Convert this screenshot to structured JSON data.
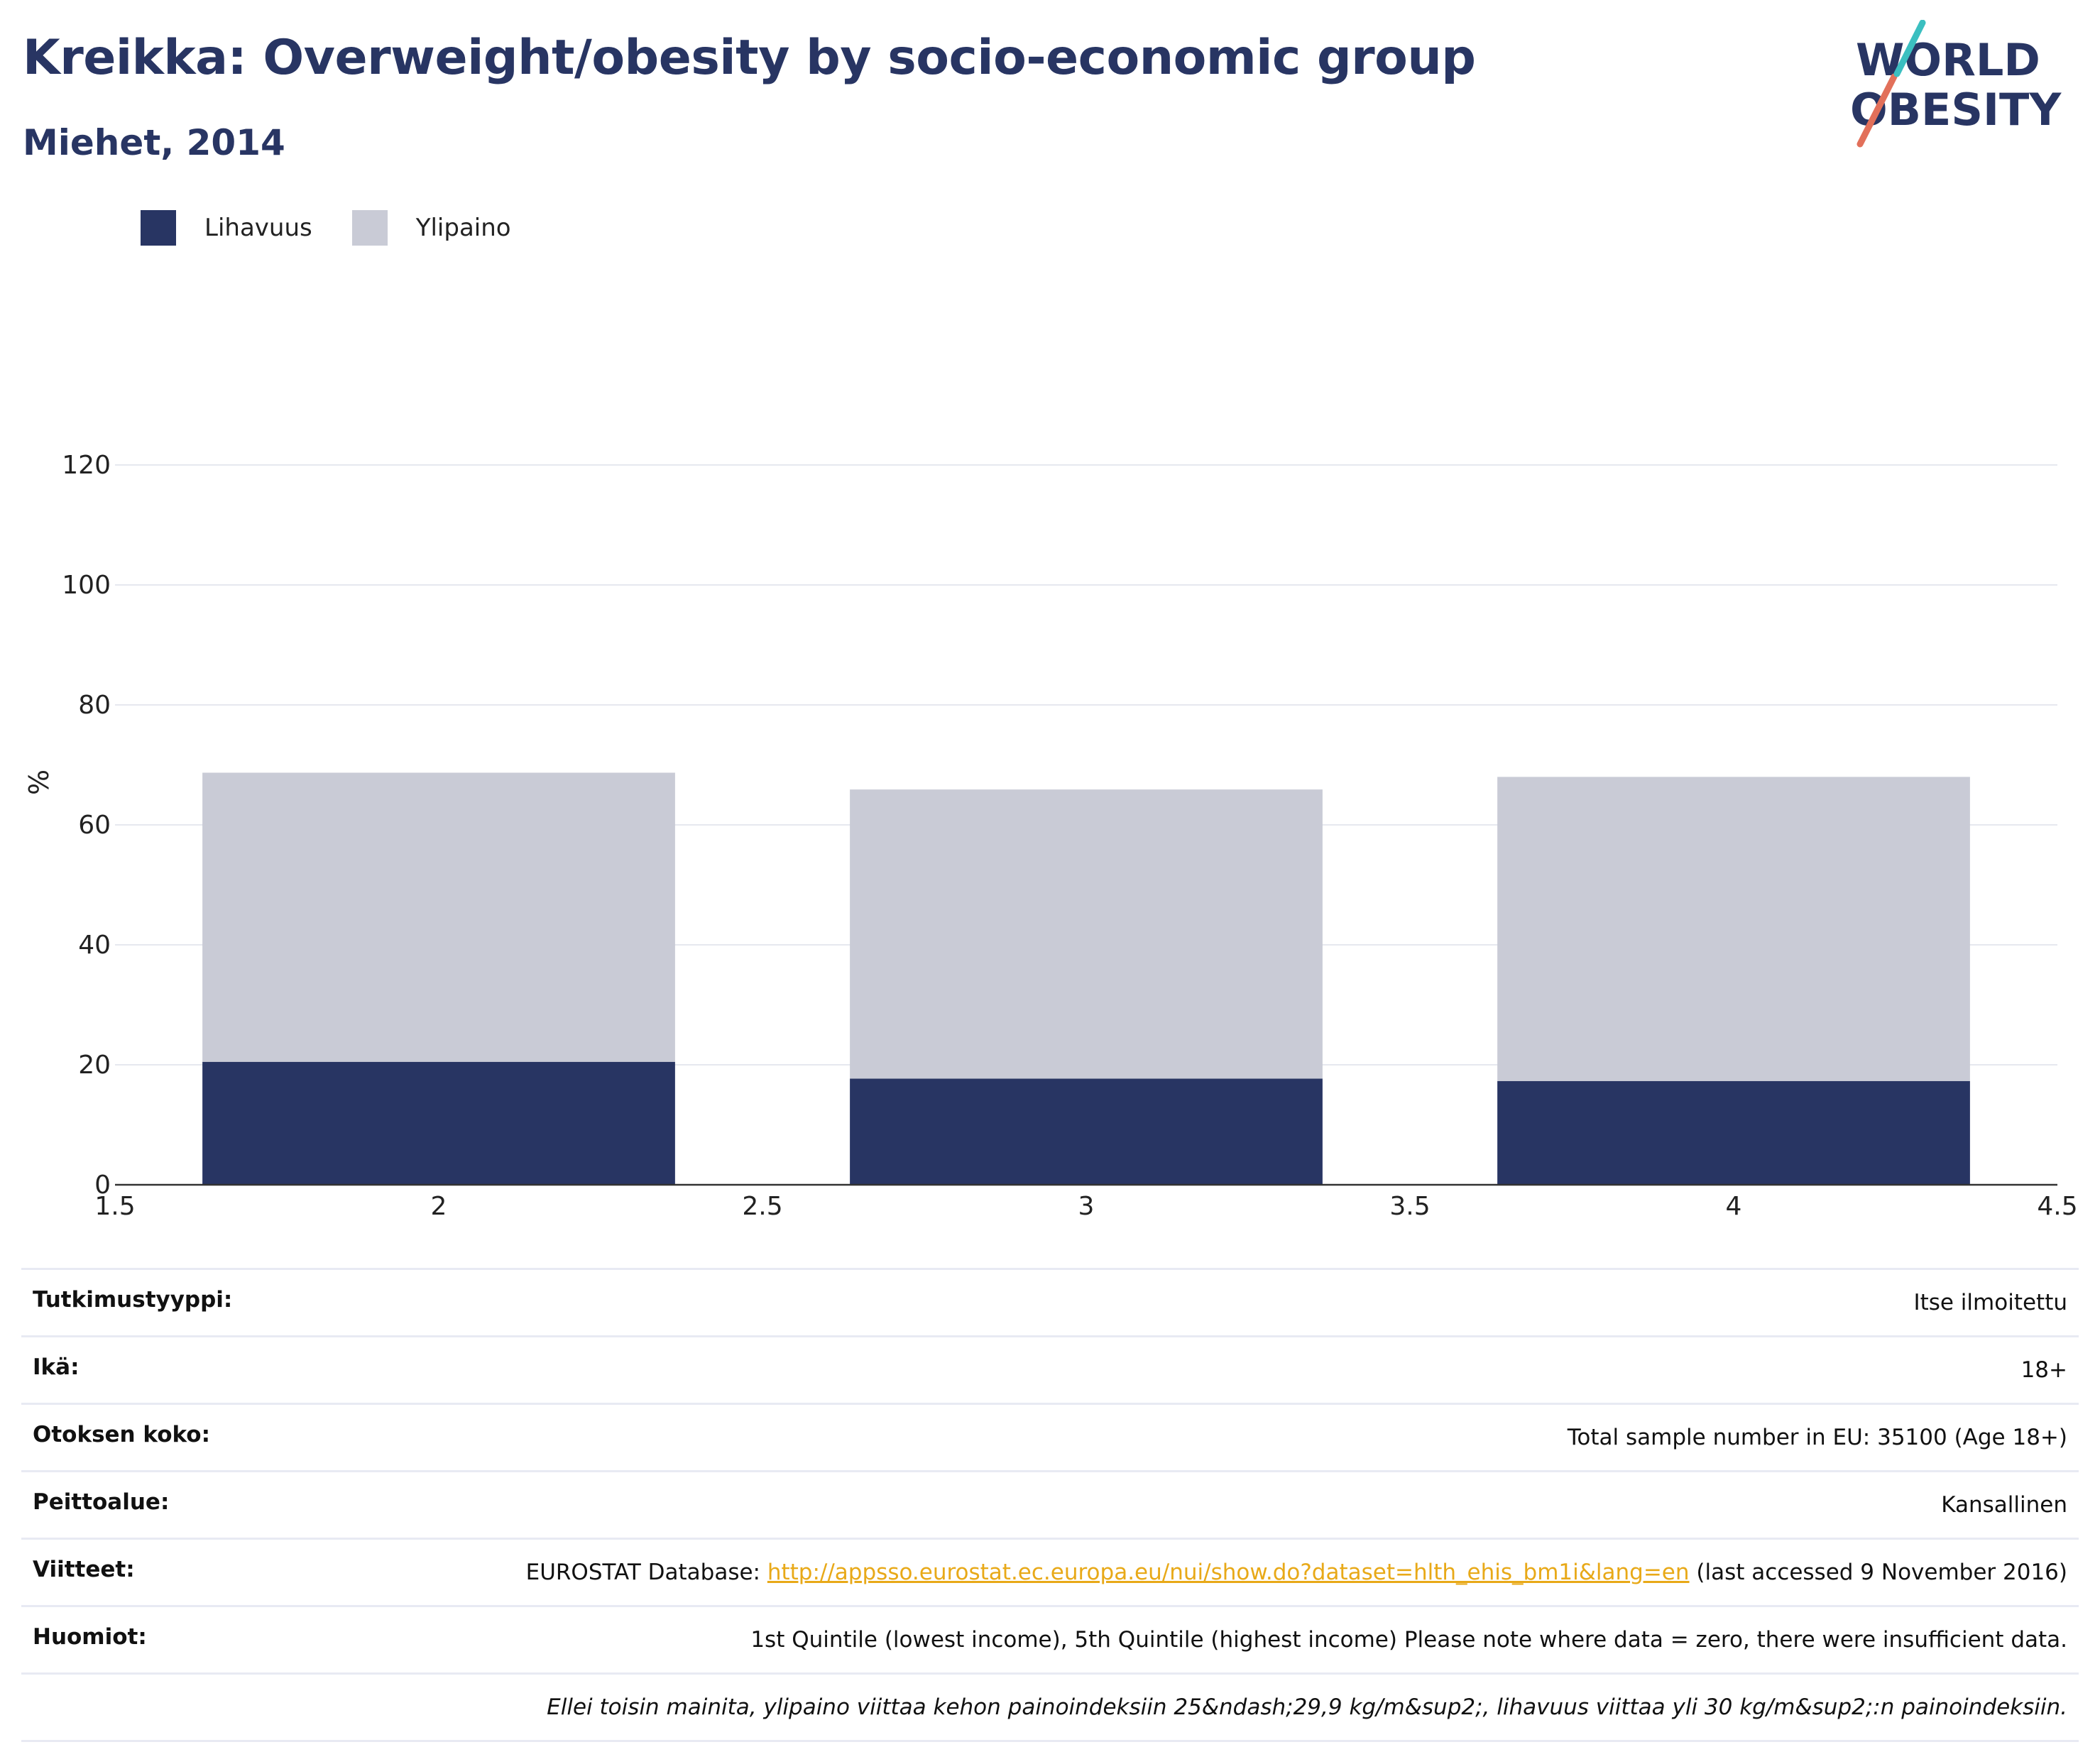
{
  "header": {
    "title": "Kreikka: Overweight/obesity by socio-economic group",
    "subtitle": "Miehet, 2014"
  },
  "logo": {
    "line1": "WORLD",
    "line2": "OBESITY",
    "colors": {
      "text": "#283563",
      "slash_top": "#3bbfc0",
      "slash_bottom": "#e2705a"
    }
  },
  "legend": [
    {
      "label": "Lihavuus",
      "color": "#283563"
    },
    {
      "label": "Ylipaino",
      "color": "#c9cbd6"
    }
  ],
  "chart_data": {
    "type": "bar",
    "stacked": true,
    "x": [
      2,
      3,
      4
    ],
    "series": [
      {
        "name": "Lihavuus",
        "color": "#283563",
        "values": [
          20.5,
          17.7,
          17.3
        ]
      },
      {
        "name": "Ylipaino",
        "color": "#c9cbd6",
        "values": [
          48.2,
          48.2,
          50.7
        ]
      }
    ],
    "xlim": [
      1.5,
      4.5
    ],
    "ylim": [
      0,
      120
    ],
    "xticks": [
      "1.5",
      "2",
      "2.5",
      "3",
      "3.5",
      "4",
      "4.5"
    ],
    "yticks": [
      "0",
      "20",
      "40",
      "60",
      "80",
      "100",
      "120"
    ],
    "ylabel": "%",
    "xlabel": "",
    "grid": true,
    "legend_position": "top-left"
  },
  "info": {
    "study_type": {
      "label": "Tutkimustyyppi:",
      "value": "Itse ilmoitettu"
    },
    "age": {
      "label": "Ikä:",
      "value": "18+"
    },
    "sample": {
      "label": "Otoksen koko:",
      "value": "Total sample number in EU: 35100 (Age 18+)"
    },
    "coverage": {
      "label": "Peittoalue:",
      "value": "Kansallinen"
    },
    "references": {
      "label": "Viitteet:",
      "prefix": "EUROSTAT Database: ",
      "link": "http://appsso.eurostat.ec.europa.eu/nui/show.do?dataset=hlth_ehis_bm1i&lang=en",
      "suffix": " (last accessed 9 November 2016)"
    },
    "notes": {
      "label": "Huomiot:",
      "value": "1st Quintile (lowest income), 5th Quintile (highest income) Please note where data = zero, there were insufficient data."
    },
    "footnote": "Ellei toisin mainita, ylipaino viittaa kehon painoindeksiin 25&ndash;29,9 kg/m&sup2;, lihavuus viittaa yli 30 kg/m&sup2;:n painoindeksiin."
  }
}
